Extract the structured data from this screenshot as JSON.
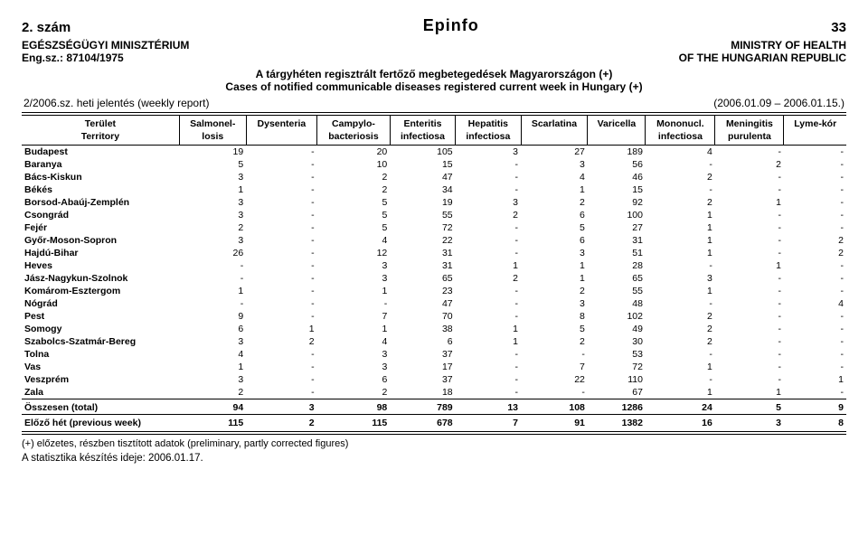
{
  "top": {
    "issue": "2. szám",
    "center": "Epinfo",
    "page": "33"
  },
  "header": {
    "left1": "EGÉSZSÉGÜGYI MINISZTÉRIUM",
    "left2": "Eng.sz.: 87104/1975",
    "right1": "MINISTRY OF HEALTH",
    "right2": "OF THE HUNGARIAN REPUBLIC"
  },
  "subtitle": {
    "line1": "A tárgyhéten regisztrált fertőző megbetegedések Magyarországon (+)",
    "line2": "Cases of notified communicable diseases registered current week in Hungary (+)"
  },
  "report": {
    "left": "2/2006.sz. heti jelentés (weekly report)",
    "right": "(2006.01.09 – 2006.01.15.)"
  },
  "columns": [
    {
      "l1": "Terület",
      "l2": "Territory"
    },
    {
      "l1": "Salmonel-",
      "l2": "losis"
    },
    {
      "l1": "Dysenteria",
      "l2": ""
    },
    {
      "l1": "Campylo-",
      "l2": "bacteriosis"
    },
    {
      "l1": "Enteritis",
      "l2": "infectiosa"
    },
    {
      "l1": "Hepatitis",
      "l2": "infectiosa"
    },
    {
      "l1": "Scarlatina",
      "l2": ""
    },
    {
      "l1": "Varicella",
      "l2": ""
    },
    {
      "l1": "Mononucl.",
      "l2": "infectiosa"
    },
    {
      "l1": "Meningitis",
      "l2": "purulenta"
    },
    {
      "l1": "Lyme-kór",
      "l2": ""
    }
  ],
  "rows": [
    {
      "name": "Budapest",
      "v": [
        "19",
        "-",
        "20",
        "105",
        "3",
        "27",
        "189",
        "4",
        "-",
        "-"
      ]
    },
    {
      "name": "Baranya",
      "v": [
        "5",
        "-",
        "10",
        "15",
        "-",
        "3",
        "56",
        "-",
        "2",
        "-"
      ]
    },
    {
      "name": "Bács-Kiskun",
      "v": [
        "3",
        "-",
        "2",
        "47",
        "-",
        "4",
        "46",
        "2",
        "-",
        "-"
      ]
    },
    {
      "name": "Békés",
      "v": [
        "1",
        "-",
        "2",
        "34",
        "-",
        "1",
        "15",
        "-",
        "-",
        "-"
      ]
    },
    {
      "name": "Borsod-Abaúj-Zemplén",
      "v": [
        "3",
        "-",
        "5",
        "19",
        "3",
        "2",
        "92",
        "2",
        "1",
        "-"
      ]
    },
    {
      "name": "Csongrád",
      "v": [
        "3",
        "-",
        "5",
        "55",
        "2",
        "6",
        "100",
        "1",
        "-",
        "-"
      ]
    },
    {
      "name": "Fejér",
      "v": [
        "2",
        "-",
        "5",
        "72",
        "-",
        "5",
        "27",
        "1",
        "-",
        "-"
      ]
    },
    {
      "name": "Győr-Moson-Sopron",
      "v": [
        "3",
        "-",
        "4",
        "22",
        "-",
        "6",
        "31",
        "1",
        "-",
        "2"
      ]
    },
    {
      "name": "Hajdú-Bihar",
      "v": [
        "26",
        "-",
        "12",
        "31",
        "-",
        "3",
        "51",
        "1",
        "-",
        "2"
      ]
    },
    {
      "name": "Heves",
      "v": [
        "-",
        "-",
        "3",
        "31",
        "1",
        "1",
        "28",
        "-",
        "1",
        "-"
      ]
    },
    {
      "name": "Jász-Nagykun-Szolnok",
      "v": [
        "-",
        "-",
        "3",
        "65",
        "2",
        "1",
        "65",
        "3",
        "-",
        "-"
      ]
    },
    {
      "name": "Komárom-Esztergom",
      "v": [
        "1",
        "-",
        "1",
        "23",
        "-",
        "2",
        "55",
        "1",
        "-",
        "-"
      ]
    },
    {
      "name": "Nógrád",
      "v": [
        "-",
        "-",
        "-",
        "47",
        "-",
        "3",
        "48",
        "-",
        "-",
        "4"
      ]
    },
    {
      "name": "Pest",
      "v": [
        "9",
        "-",
        "7",
        "70",
        "-",
        "8",
        "102",
        "2",
        "-",
        "-"
      ]
    },
    {
      "name": "Somogy",
      "v": [
        "6",
        "1",
        "1",
        "38",
        "1",
        "5",
        "49",
        "2",
        "-",
        "-"
      ]
    },
    {
      "name": "Szabolcs-Szatmár-Bereg",
      "v": [
        "3",
        "2",
        "4",
        "6",
        "1",
        "2",
        "30",
        "2",
        "-",
        "-"
      ]
    },
    {
      "name": "Tolna",
      "v": [
        "4",
        "-",
        "3",
        "37",
        "-",
        "-",
        "53",
        "-",
        "-",
        "-"
      ]
    },
    {
      "name": "Vas",
      "v": [
        "1",
        "-",
        "3",
        "17",
        "-",
        "7",
        "72",
        "1",
        "-",
        "-"
      ]
    },
    {
      "name": "Veszprém",
      "v": [
        "3",
        "-",
        "6",
        "37",
        "-",
        "22",
        "110",
        "-",
        "-",
        "1"
      ]
    },
    {
      "name": "Zala",
      "v": [
        "2",
        "-",
        "2",
        "18",
        "-",
        "-",
        "67",
        "1",
        "1",
        "-"
      ]
    }
  ],
  "total": {
    "name": "Összesen (total)",
    "v": [
      "94",
      "3",
      "98",
      "789",
      "13",
      "108",
      "1286",
      "24",
      "5",
      "9"
    ]
  },
  "prev": {
    "name": "Előző hét (previous week)",
    "v": [
      "115",
      "2",
      "115",
      "678",
      "7",
      "91",
      "1382",
      "16",
      "3",
      "8"
    ]
  },
  "footnote": "(+) előzetes, részben tisztított adatok (preliminary, partly corrected figures)",
  "statdate": "A statisztika készítés ideje: 2006.01.17."
}
